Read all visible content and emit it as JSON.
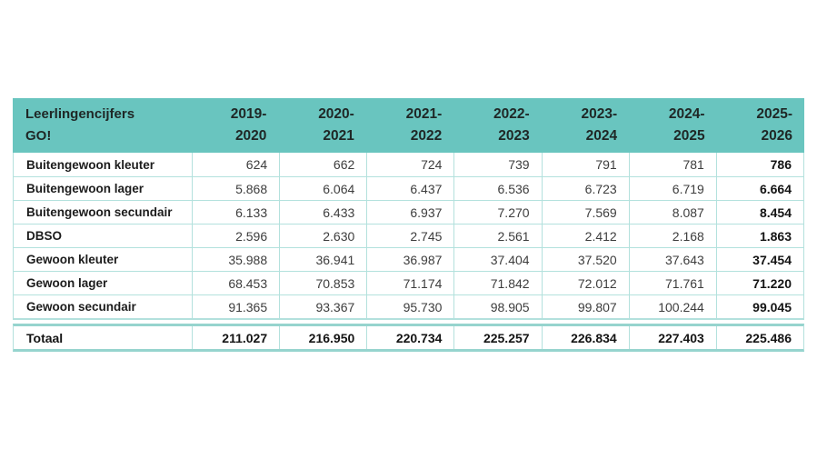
{
  "chart_data": {
    "type": "table",
    "title": "Leerlingencijfers GO!",
    "columns": [
      "2019-2020",
      "2020-2021",
      "2021-2022",
      "2022-2023",
      "2023-2024",
      "2024-2025",
      "2025-2026"
    ],
    "rows": [
      {
        "label": "Buitengewoon kleuter",
        "values": [
          "624",
          "662",
          "724",
          "739",
          "791",
          "781",
          "786"
        ]
      },
      {
        "label": "Buitengewoon lager",
        "values": [
          "5.868",
          "6.064",
          "6.437",
          "6.536",
          "6.723",
          "6.719",
          "6.664"
        ]
      },
      {
        "label": "Buitengewoon secundair",
        "values": [
          "6.133",
          "6.433",
          "6.937",
          "7.270",
          "7.569",
          "8.087",
          "8.454"
        ]
      },
      {
        "label": "DBSO",
        "values": [
          "2.596",
          "2.630",
          "2.745",
          "2.561",
          "2.412",
          "2.168",
          "1.863"
        ]
      },
      {
        "label": "Gewoon kleuter",
        "values": [
          "35.988",
          "36.941",
          "36.987",
          "37.404",
          "37.520",
          "37.643",
          "37.454"
        ]
      },
      {
        "label": "Gewoon lager",
        "values": [
          "68.453",
          "70.853",
          "71.174",
          "71.842",
          "72.012",
          "71.761",
          "71.220"
        ]
      },
      {
        "label": "Gewoon secundair",
        "values": [
          "91.365",
          "93.367",
          "95.730",
          "98.905",
          "99.807",
          "100.244",
          "99.045"
        ]
      }
    ],
    "total_row": {
      "label": "Totaal",
      "values": [
        "211.027",
        "216.950",
        "220.734",
        "225.257",
        "226.834",
        "227.403",
        "225.486"
      ]
    },
    "layout": {
      "bold_last_column": true,
      "grid": "light teal row and column rules",
      "header_wraps_years_at_hyphen": true,
      "double_rule_above_total": true
    }
  },
  "colors": {
    "header_bg": "#69c5bf",
    "border_light": "#b3e1dd",
    "border_medium": "#96d4ce",
    "header_text": "#1f2726",
    "label_text": "#1c1c1c",
    "value_text": "#3d3d3d",
    "bold_value_text": "#141414",
    "page_bg": "#ffffff"
  }
}
